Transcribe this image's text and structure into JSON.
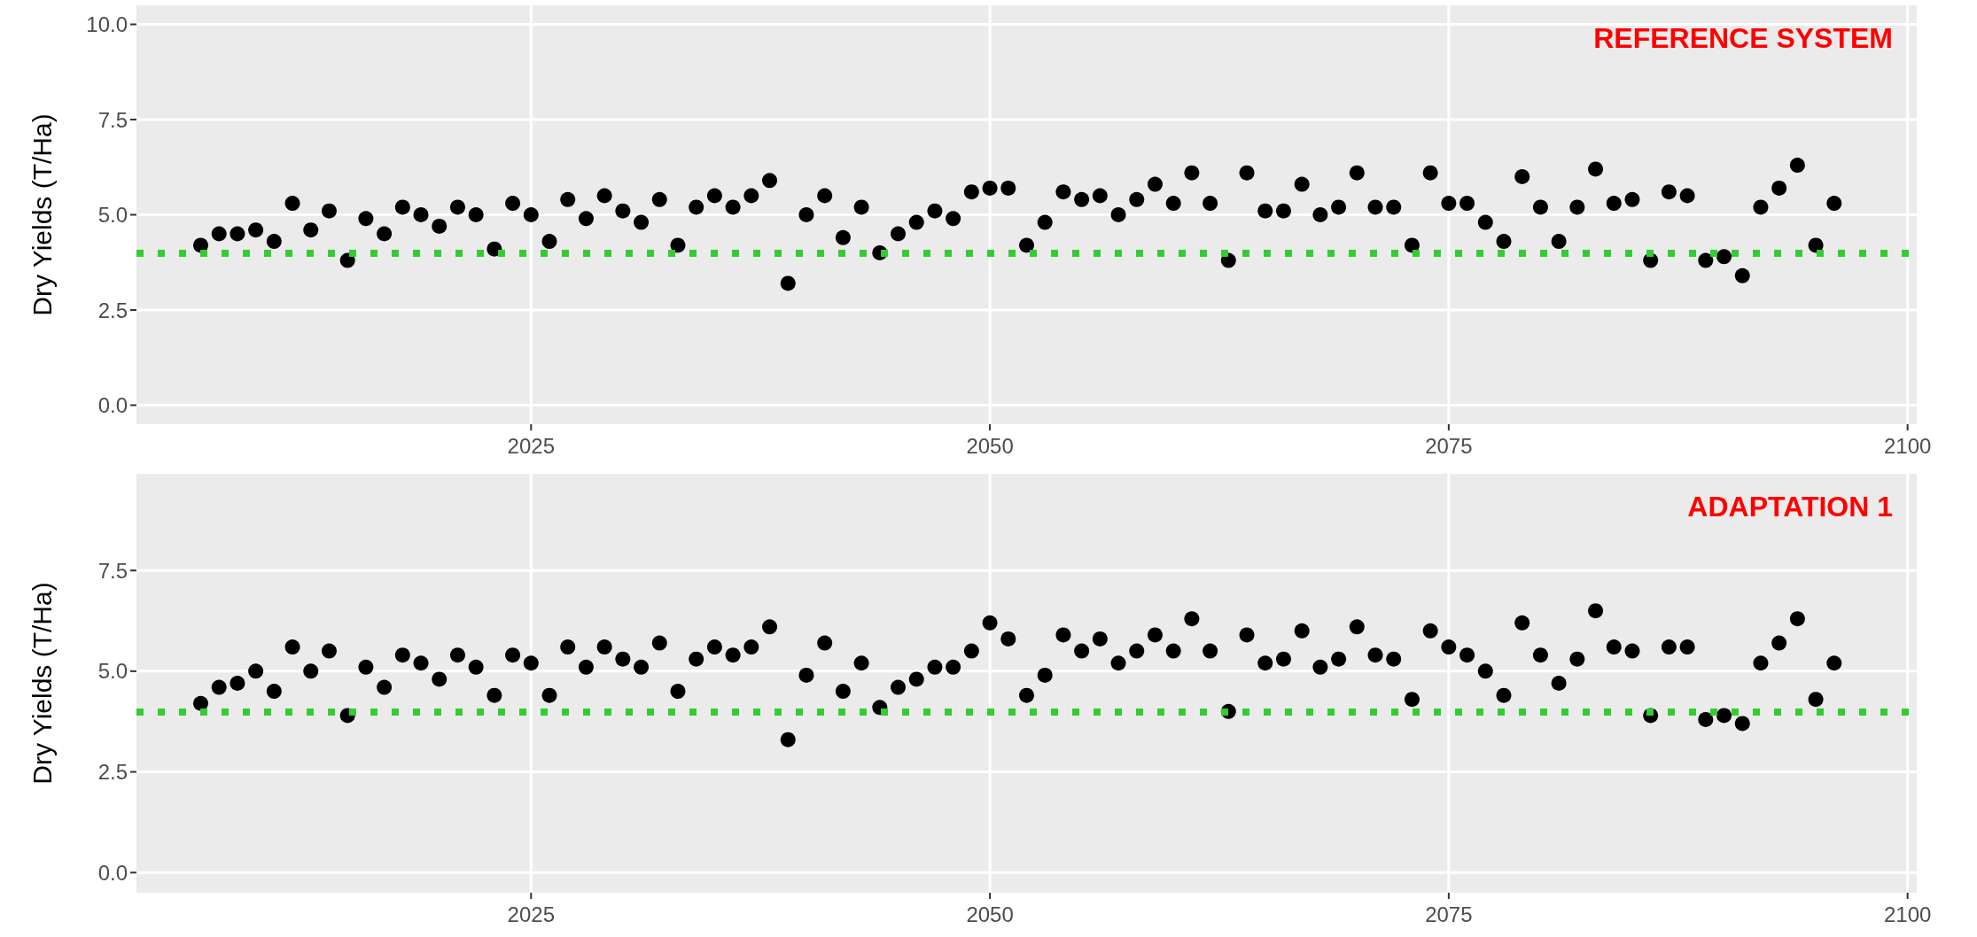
{
  "chart_data": [
    {
      "type": "scatter",
      "title": "REFERENCE SYSTEM",
      "ylabel": "Dry Yields (T/Ha)",
      "marker": "circle",
      "grid": true,
      "x": [
        2007,
        2008,
        2009,
        2010,
        2011,
        2012,
        2013,
        2014,
        2015,
        2016,
        2017,
        2018,
        2019,
        2020,
        2021,
        2022,
        2023,
        2024,
        2025,
        2026,
        2027,
        2028,
        2029,
        2030,
        2031,
        2032,
        2033,
        2034,
        2035,
        2036,
        2037,
        2038,
        2039,
        2040,
        2041,
        2042,
        2043,
        2044,
        2045,
        2046,
        2047,
        2048,
        2049,
        2050,
        2051,
        2052,
        2053,
        2054,
        2055,
        2056,
        2057,
        2058,
        2059,
        2060,
        2061,
        2062,
        2063,
        2064,
        2065,
        2066,
        2067,
        2068,
        2069,
        2070,
        2071,
        2072,
        2073,
        2074,
        2075,
        2076,
        2077,
        2078,
        2079,
        2080,
        2081,
        2082,
        2083,
        2084,
        2085,
        2086,
        2087,
        2088,
        2089,
        2090,
        2091,
        2092,
        2093,
        2094,
        2095,
        2096
      ],
      "series": [
        {
          "color": "#000000",
          "values": [
            4.2,
            4.5,
            4.5,
            4.6,
            4.3,
            5.3,
            4.6,
            5.1,
            3.8,
            4.9,
            4.5,
            5.2,
            5.0,
            4.7,
            5.2,
            5.0,
            4.1,
            5.3,
            5.0,
            4.3,
            5.4,
            4.9,
            5.5,
            5.1,
            4.8,
            5.4,
            4.2,
            5.2,
            5.5,
            5.2,
            5.5,
            5.9,
            3.2,
            5.0,
            5.5,
            4.4,
            5.2,
            4.0,
            4.5,
            4.8,
            5.1,
            4.9,
            5.6,
            5.7,
            5.7,
            4.2,
            4.8,
            5.6,
            5.4,
            5.5,
            5.0,
            5.4,
            5.8,
            5.3,
            6.1,
            5.3,
            3.8,
            6.1,
            5.1,
            5.1,
            5.8,
            5.0,
            5.2,
            6.1,
            5.2,
            5.2,
            4.2,
            6.1,
            5.3,
            5.3,
            4.8,
            4.3,
            6.0,
            5.2,
            4.3,
            5.2,
            6.2,
            5.3,
            5.4,
            3.8,
            5.6,
            5.5,
            3.8,
            3.9,
            3.4,
            5.2,
            5.7,
            6.3,
            4.2,
            5.3
          ]
        }
      ],
      "xlim": [
        2003.5,
        2100.5
      ],
      "xticks": [
        2025,
        2050,
        2075,
        2100
      ],
      "ylim": [
        -0.5,
        10.5
      ],
      "yticks": [
        {
          "value": 0,
          "label": "0.0"
        },
        {
          "value": 2.5,
          "label": "2.5"
        },
        {
          "value": 5,
          "label": "5.0"
        },
        {
          "value": 7.5,
          "label": "7.5"
        },
        {
          "value": 10,
          "label": "10.0"
        }
      ],
      "ref_lines": [
        {
          "axis": "y",
          "value": 4,
          "color": "#33cc33",
          "line_style": "dotted"
        }
      ]
    },
    {
      "type": "scatter",
      "title": "ADAPTATION 1",
      "ylabel": "Dry Yields (T/Ha)",
      "marker": "circle",
      "grid": true,
      "x": [
        2007,
        2008,
        2009,
        2010,
        2011,
        2012,
        2013,
        2014,
        2015,
        2016,
        2017,
        2018,
        2019,
        2020,
        2021,
        2022,
        2023,
        2024,
        2025,
        2026,
        2027,
        2028,
        2029,
        2030,
        2031,
        2032,
        2033,
        2034,
        2035,
        2036,
        2037,
        2038,
        2039,
        2040,
        2041,
        2042,
        2043,
        2044,
        2045,
        2046,
        2047,
        2048,
        2049,
        2050,
        2051,
        2052,
        2053,
        2054,
        2055,
        2056,
        2057,
        2058,
        2059,
        2060,
        2061,
        2062,
        2063,
        2064,
        2065,
        2066,
        2067,
        2068,
        2069,
        2070,
        2071,
        2072,
        2073,
        2074,
        2075,
        2076,
        2077,
        2078,
        2079,
        2080,
        2081,
        2082,
        2083,
        2084,
        2085,
        2086,
        2087,
        2088,
        2089,
        2090,
        2091,
        2092,
        2093,
        2094,
        2095,
        2096
      ],
      "series": [
        {
          "color": "#000000",
          "values": [
            4.2,
            4.6,
            4.7,
            5.0,
            4.5,
            5.6,
            5.0,
            5.5,
            3.9,
            5.1,
            4.6,
            5.4,
            5.2,
            4.8,
            5.4,
            5.1,
            4.4,
            5.4,
            5.2,
            4.4,
            5.6,
            5.1,
            5.6,
            5.3,
            5.1,
            5.7,
            4.5,
            5.3,
            5.6,
            5.4,
            5.6,
            6.1,
            3.3,
            4.9,
            5.7,
            4.5,
            5.2,
            4.1,
            4.6,
            4.8,
            5.1,
            5.1,
            5.5,
            6.2,
            5.8,
            4.4,
            4.9,
            5.9,
            5.5,
            5.8,
            5.2,
            5.5,
            5.9,
            5.5,
            6.3,
            5.5,
            4.0,
            5.9,
            5.2,
            5.3,
            6.0,
            5.1,
            5.3,
            6.1,
            5.4,
            5.3,
            4.3,
            6.0,
            5.6,
            5.4,
            5.0,
            4.4,
            6.2,
            5.4,
            4.7,
            5.3,
            6.5,
            5.6,
            5.5,
            3.9,
            5.6,
            5.6,
            3.8,
            3.9,
            3.7,
            5.2,
            5.7,
            6.3,
            4.3,
            5.2
          ]
        }
      ],
      "xlim": [
        2003.5,
        2100.5
      ],
      "xticks": [
        2025,
        2050,
        2075,
        2100
      ],
      "ylim": [
        -0.5,
        9.9
      ],
      "yticks": [
        {
          "value": 0,
          "label": "0.0"
        },
        {
          "value": 2.5,
          "label": "2.5"
        },
        {
          "value": 5,
          "label": "5.0"
        },
        {
          "value": 7.5,
          "label": "7.5"
        }
      ],
      "ref_lines": [
        {
          "axis": "y",
          "value": 4,
          "color": "#33cc33",
          "line_style": "dotted"
        }
      ]
    }
  ]
}
